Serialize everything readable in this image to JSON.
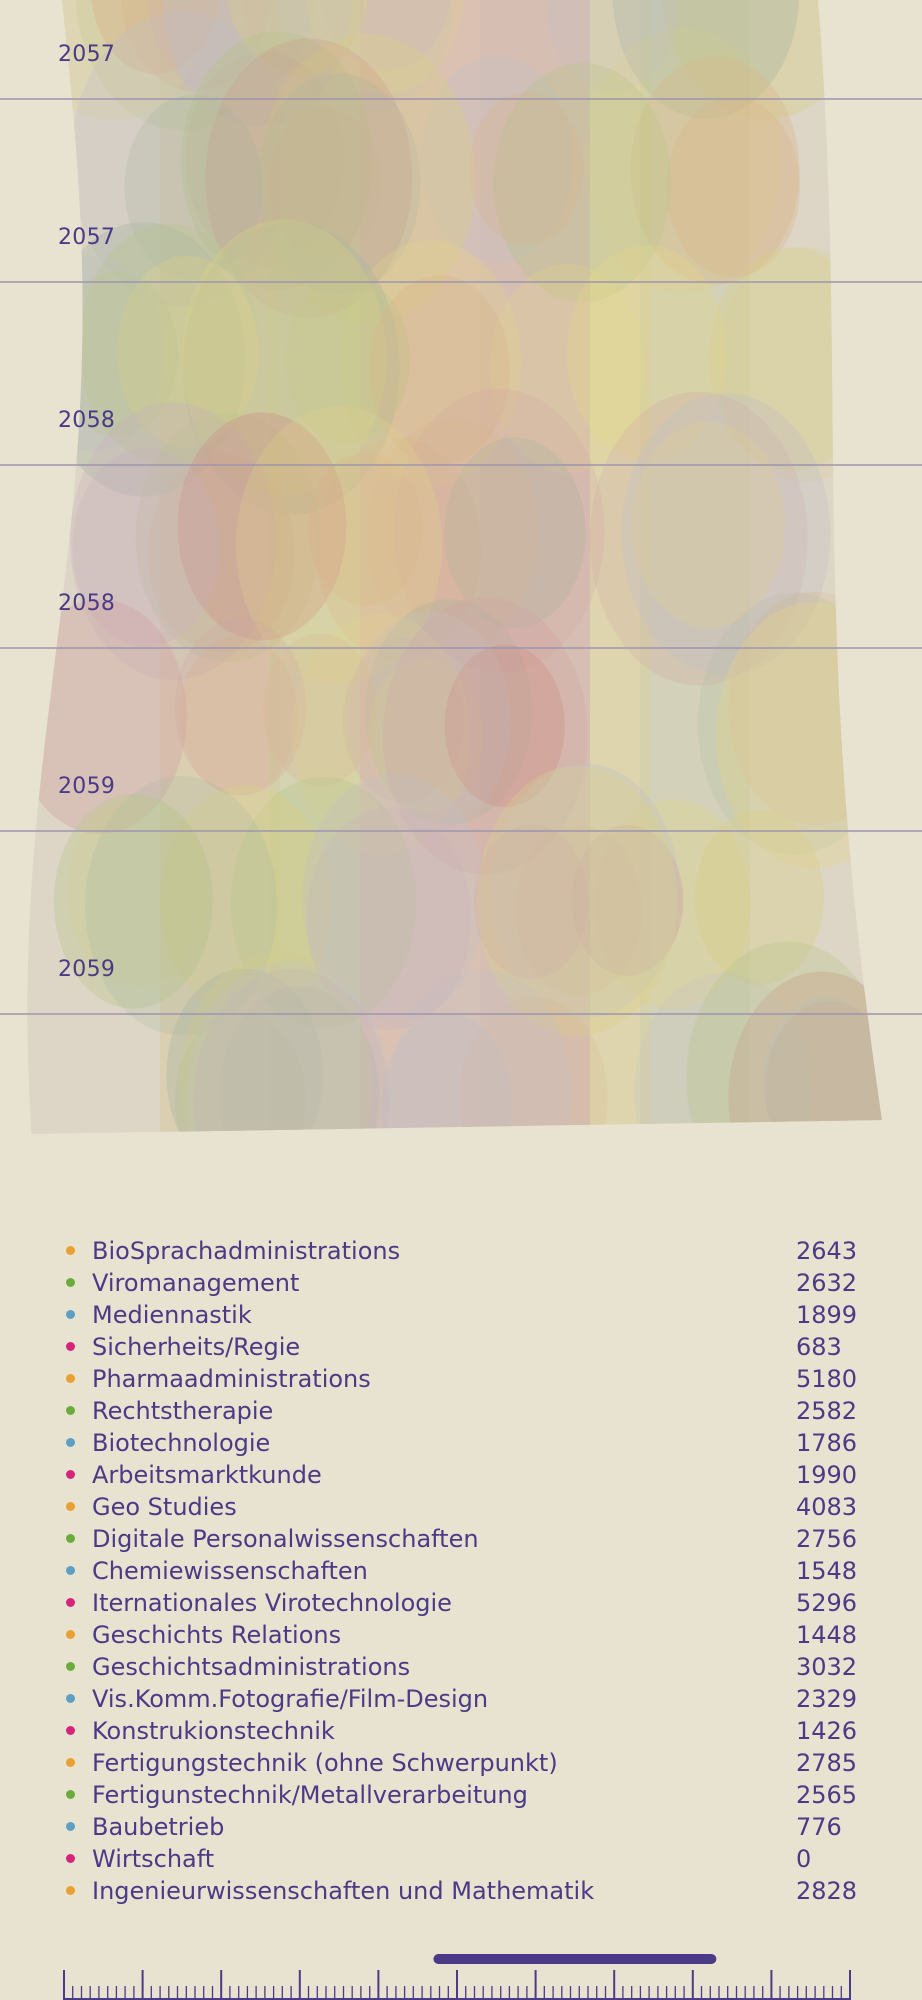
{
  "colors": {
    "background": "#e8e2d0",
    "text": "#4b3a86",
    "gridline": "#9e95ae",
    "category_dots": [
      "#e8a030",
      "#6aad3c",
      "#5b9fc4",
      "#d4257d"
    ]
  },
  "chart_data": {
    "type": "area",
    "description_type": "stream-bubble",
    "y_ticks": [
      "2057",
      "2057",
      "2058",
      "2058",
      "2059",
      "2059"
    ],
    "grid": true,
    "legend_placement": "bottom",
    "series": [
      {
        "name": "BioSprachadministrations",
        "value": 2643,
        "color": "#e8a030"
      },
      {
        "name": "Viromanagement",
        "value": 2632,
        "color": "#6aad3c"
      },
      {
        "name": "Mediennastik",
        "value": 1899,
        "color": "#5b9fc4"
      },
      {
        "name": "Sicherheits/Regie",
        "value": 683,
        "color": "#d4257d"
      },
      {
        "name": "Pharmaadministrations",
        "value": 5180,
        "color": "#e8a030"
      },
      {
        "name": "Rechtstherapie",
        "value": 2582,
        "color": "#6aad3c"
      },
      {
        "name": "Biotechnologie",
        "value": 1786,
        "color": "#5b9fc4"
      },
      {
        "name": "Arbeitsmarktkunde",
        "value": 1990,
        "color": "#d4257d"
      },
      {
        "name": "Geo Studies",
        "value": 4083,
        "color": "#e8a030"
      },
      {
        "name": "Digitale Personalwissenschaften",
        "value": 2756,
        "color": "#6aad3c"
      },
      {
        "name": "Chemiewissenschaften",
        "value": 1548,
        "color": "#5b9fc4"
      },
      {
        "name": "Iternationales Virotechnologie",
        "value": 5296,
        "color": "#d4257d"
      },
      {
        "name": "Geschichts Relations",
        "value": 1448,
        "color": "#e8a030"
      },
      {
        "name": "Geschichtsadministrations",
        "value": 3032,
        "color": "#6aad3c"
      },
      {
        "name": "Vis.Komm.Fotografie/Film-Design",
        "value": 2329,
        "color": "#5b9fc4"
      },
      {
        "name": "Konstrukionstechnik",
        "value": 1426,
        "color": "#d4257d"
      },
      {
        "name": "Fertigungstechnik (ohne Schwerpunkt)",
        "value": 2785,
        "color": "#e8a030"
      },
      {
        "name": "Fertigunstechnik/Metallverarbeitung",
        "value": 2565,
        "color": "#6aad3c"
      },
      {
        "name": "Baubetrieb",
        "value": 776,
        "color": "#5b9fc4"
      },
      {
        "name": "Wirtschaft",
        "value": 0,
        "color": "#d4257d"
      },
      {
        "name": "Ingenieurwissenschaften und Mathematik",
        "value": 2828,
        "color": "#e8a030"
      }
    ],
    "timeline_selection": [
      0.47,
      0.83
    ]
  }
}
